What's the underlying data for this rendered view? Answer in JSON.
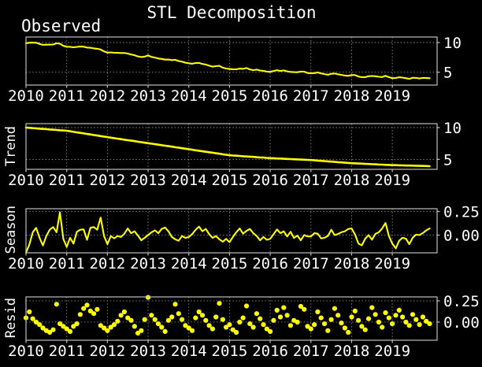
{
  "title": "STL Decomposition",
  "colors": {
    "background": "#000000",
    "series": "#ffff00",
    "text": "#ffffff",
    "spine": "#bdbdbd",
    "grid": "#8a8a8a"
  },
  "chart_data": {
    "type": "line",
    "title": "STL Decomposition",
    "x_start_year": 2010,
    "x_frequency": "monthly",
    "xlim": [
      2010.0,
      2020.1
    ],
    "grid": "dashed",
    "x_ticks": [
      2010,
      2011,
      2012,
      2013,
      2014,
      2015,
      2016,
      2017,
      2018,
      2019
    ],
    "x_tick_labels": [
      "2010",
      "2011",
      "2012",
      "2013",
      "2014",
      "2015",
      "2016",
      "2017",
      "2018",
      "2019"
    ],
    "panels": [
      {
        "label": "Observed",
        "type": "line",
        "ylim": [
          2.84,
          10.93
        ],
        "yticks": [
          {
            "value": 10,
            "label": "10"
          },
          {
            "value": 5,
            "label": "5"
          }
        ],
        "values": [
          9.87,
          9.98,
          9.99,
          9.96,
          9.77,
          9.61,
          9.64,
          9.65,
          9.67,
          9.87,
          9.8,
          9.45,
          9.3,
          9.28,
          9.19,
          9.27,
          9.32,
          9.3,
          9.15,
          9.13,
          9.02,
          8.96,
          8.82,
          8.5,
          8.3,
          8.35,
          8.28,
          8.26,
          8.24,
          8.24,
          8.14,
          7.99,
          7.86,
          7.66,
          7.56,
          7.63,
          7.84,
          7.58,
          7.47,
          7.31,
          7.24,
          7.12,
          7.14,
          7.04,
          7.09,
          6.88,
          6.78,
          6.61,
          6.51,
          6.43,
          6.55,
          6.57,
          6.4,
          6.29,
          6.1,
          5.94,
          6.02,
          6.07,
          5.77,
          5.63,
          5.55,
          5.5,
          5.49,
          5.61,
          5.57,
          5.7,
          5.48,
          5.35,
          5.44,
          5.3,
          5.23,
          5.11,
          5.05,
          5.21,
          5.35,
          5.21,
          5.31,
          5.15,
          5.05,
          5.02,
          5.0,
          5.11,
          5.1,
          4.87,
          4.81,
          4.85,
          4.96,
          4.8,
          4.68,
          4.58,
          4.74,
          4.77,
          4.66,
          4.55,
          4.45,
          4.39,
          4.53,
          4.52,
          4.28,
          4.17,
          4.17,
          4.32,
          4.37,
          4.33,
          4.23,
          4.19,
          4.39,
          4.17,
          3.99,
          4.03,
          4.15,
          4.09,
          4.0,
          3.89,
          4.08,
          4.04,
          3.96,
          4.05,
          4.02,
          3.99
        ]
      },
      {
        "label": "Trend",
        "type": "line",
        "ylim": [
          3.44,
          10.62
        ],
        "yticks": [
          {
            "value": 10,
            "label": "10"
          },
          {
            "value": 5,
            "label": "5"
          }
        ],
        "values": [
          10.0,
          9.96,
          9.92,
          9.88,
          9.83,
          9.79,
          9.75,
          9.71,
          9.67,
          9.63,
          9.58,
          9.54,
          9.5,
          9.42,
          9.33,
          9.25,
          9.17,
          9.08,
          9.0,
          8.92,
          8.83,
          8.75,
          8.67,
          8.58,
          8.5,
          8.42,
          8.34,
          8.26,
          8.18,
          8.1,
          8.02,
          7.95,
          7.87,
          7.79,
          7.71,
          7.63,
          7.55,
          7.47,
          7.39,
          7.31,
          7.23,
          7.15,
          7.08,
          7.0,
          6.92,
          6.84,
          6.76,
          6.68,
          6.6,
          6.52,
          6.44,
          6.36,
          6.28,
          6.2,
          6.13,
          6.05,
          5.97,
          5.89,
          5.81,
          5.73,
          5.65,
          5.61,
          5.58,
          5.54,
          5.5,
          5.46,
          5.43,
          5.39,
          5.35,
          5.31,
          5.28,
          5.24,
          5.2,
          5.18,
          5.15,
          5.13,
          5.1,
          5.08,
          5.05,
          5.03,
          5.0,
          4.98,
          4.95,
          4.93,
          4.9,
          4.86,
          4.82,
          4.78,
          4.73,
          4.69,
          4.65,
          4.61,
          4.57,
          4.53,
          4.48,
          4.44,
          4.4,
          4.38,
          4.35,
          4.33,
          4.3,
          4.28,
          4.25,
          4.23,
          4.2,
          4.18,
          4.15,
          4.13,
          4.1,
          4.09,
          4.07,
          4.06,
          4.04,
          4.03,
          4.02,
          4.0,
          3.99,
          3.97,
          3.96,
          3.94
        ]
      },
      {
        "label": "Season",
        "type": "line",
        "ylim": [
          -0.187,
          0.279
        ],
        "yticks": [
          {
            "value": 0.25,
            "label": "0.25"
          },
          {
            "value": 0,
            "label": "0.00"
          }
        ],
        "values": [
          -0.185,
          -0.1,
          0.03,
          0.077,
          -0.028,
          -0.11,
          -0.01,
          0.057,
          0.085,
          0.03,
          0.24,
          -0.04,
          -0.125,
          -0.028,
          -0.09,
          0.035,
          0.057,
          0.06,
          -0.05,
          0.077,
          0.085,
          0.057,
          0.185,
          -0.01,
          -0.096,
          -0.01,
          -0.035,
          -0.01,
          -0.02,
          0.015,
          0.07,
          0.02,
          0.04,
          -0.005,
          -0.055,
          -0.028,
          0.0,
          0.03,
          0.05,
          0.02,
          0.065,
          0.08,
          0.04,
          -0.02,
          -0.045,
          -0.06,
          -0.01,
          -0.03,
          -0.02,
          0.01,
          0.055,
          0.09,
          0.04,
          0.065,
          0.01,
          -0.03,
          -0.01,
          -0.045,
          -0.07,
          -0.04,
          -0.075,
          -0.02,
          0.03,
          0.07,
          0.015,
          0.045,
          0.065,
          0.02,
          -0.01,
          -0.055,
          -0.02,
          -0.05,
          -0.04,
          0.01,
          0.06,
          0.02,
          0.04,
          -0.015,
          0.035,
          -0.03,
          -0.005,
          -0.055,
          0.0,
          -0.014,
          -0.014,
          0.02,
          0.015,
          -0.035,
          -0.028,
          -0.01,
          0.057,
          0.0,
          0.012,
          0.03,
          0.04,
          0.065,
          0.07,
          0.005,
          -0.09,
          -0.108,
          -0.038,
          0.0,
          -0.048,
          0.012,
          0.03,
          0.07,
          0.128,
          -0.01,
          -0.09,
          -0.14,
          -0.06,
          -0.028,
          -0.038,
          -0.096,
          -0.028,
          0.005,
          0.0,
          0.022,
          0.05,
          0.07
        ]
      },
      {
        "label": "Resid",
        "type": "scatter",
        "ylim": [
          -0.213,
          0.296
        ],
        "yticks": [
          {
            "value": 0.25,
            "label": "0.25"
          },
          {
            "value": 0,
            "label": "0.00"
          }
        ],
        "values": [
          0.05,
          0.12,
          0.04,
          0.0,
          -0.03,
          -0.07,
          -0.1,
          -0.12,
          -0.09,
          0.21,
          -0.02,
          -0.05,
          -0.08,
          -0.11,
          -0.05,
          -0.02,
          0.09,
          0.16,
          0.2,
          0.13,
          0.1,
          0.15,
          -0.04,
          -0.07,
          -0.1,
          -0.06,
          -0.03,
          0.01,
          0.08,
          0.12,
          0.05,
          0.02,
          -0.05,
          -0.13,
          -0.1,
          0.03,
          0.29,
          0.08,
          0.03,
          -0.02,
          -0.06,
          -0.11,
          0.02,
          0.06,
          0.21,
          0.1,
          0.03,
          -0.04,
          -0.07,
          -0.1,
          0.05,
          0.12,
          0.08,
          0.02,
          -0.04,
          -0.08,
          0.06,
          0.22,
          0.03,
          -0.06,
          -0.03,
          -0.09,
          -0.12,
          0.0,
          0.05,
          0.19,
          -0.02,
          -0.06,
          0.1,
          0.04,
          -0.03,
          -0.08,
          -0.11,
          0.02,
          0.14,
          0.06,
          0.17,
          0.08,
          -0.04,
          0.02,
          0.0,
          0.185,
          0.15,
          -0.05,
          -0.08,
          -0.03,
          0.12,
          0.05,
          -0.02,
          -0.1,
          0.03,
          0.16,
          0.08,
          -0.01,
          -0.07,
          -0.12,
          0.06,
          0.13,
          0.02,
          -0.05,
          -0.09,
          0.04,
          0.17,
          0.09,
          0.0,
          -0.06,
          0.11,
          0.05,
          -0.02,
          0.08,
          0.14,
          0.06,
          0.0,
          -0.04,
          0.09,
          0.03,
          -0.03,
          0.06,
          0.01,
          -0.02
        ]
      }
    ]
  }
}
